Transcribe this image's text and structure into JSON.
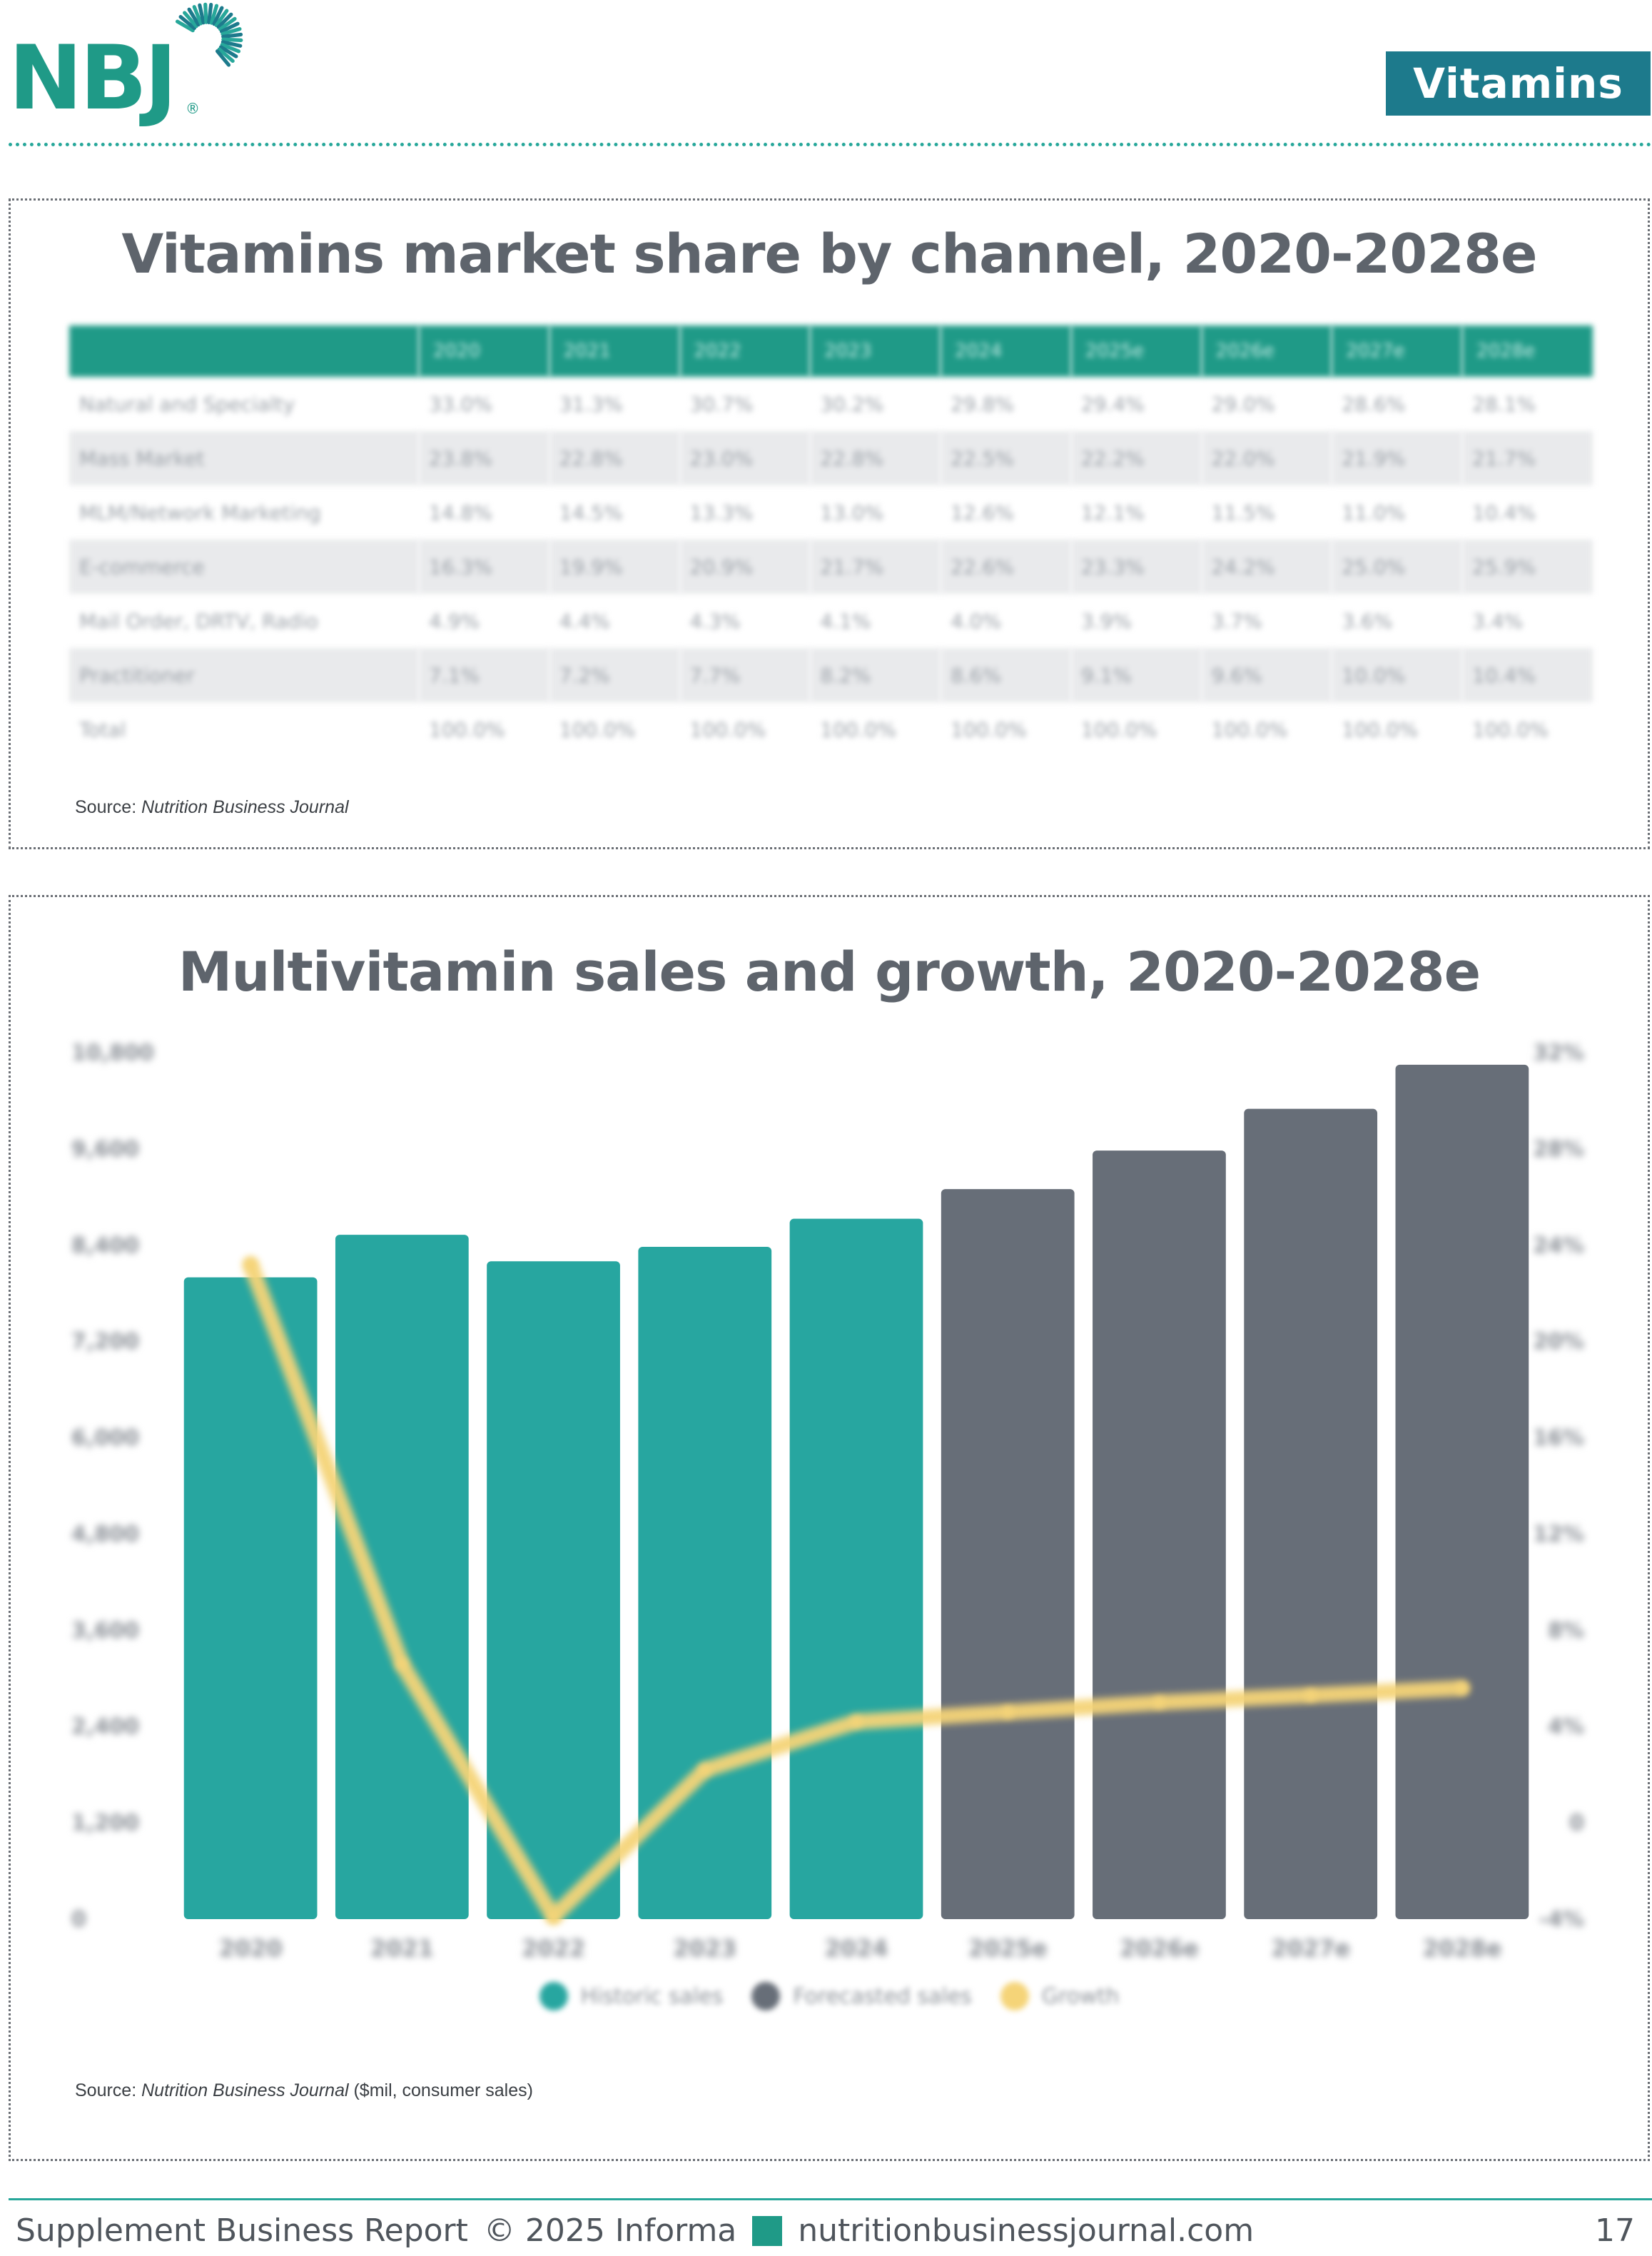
{
  "header": {
    "logo_text": "NBJ",
    "logo_reg": "®",
    "section_badge": "Vitamins",
    "colors": {
      "brand_teal": "#1f9a87",
      "badge_blue": "#1d7a8c"
    }
  },
  "table_panel": {
    "title": "Vitamins market share by channel, 2020-2028e",
    "columns": [
      "",
      "2020",
      "2021",
      "2022",
      "2023",
      "2024",
      "2025e",
      "2026e",
      "2027e",
      "2028e"
    ],
    "rows": [
      {
        "channel": "Natural and Specialty",
        "values": [
          "33.0%",
          "31.3%",
          "30.7%",
          "30.2%",
          "29.8%",
          "29.4%",
          "29.0%",
          "28.6%",
          "28.1%"
        ]
      },
      {
        "channel": "Mass Market",
        "values": [
          "23.8%",
          "22.8%",
          "23.0%",
          "22.8%",
          "22.5%",
          "22.2%",
          "22.0%",
          "21.9%",
          "21.7%"
        ]
      },
      {
        "channel": "MLM/Network Marketing",
        "values": [
          "14.8%",
          "14.5%",
          "13.3%",
          "13.0%",
          "12.6%",
          "12.1%",
          "11.5%",
          "11.0%",
          "10.4%"
        ]
      },
      {
        "channel": "E-commerce",
        "values": [
          "16.3%",
          "19.9%",
          "20.9%",
          "21.7%",
          "22.6%",
          "23.3%",
          "24.2%",
          "25.0%",
          "25.9%"
        ]
      },
      {
        "channel": "Mail Order, DRTV, Radio",
        "values": [
          "4.9%",
          "4.4%",
          "4.3%",
          "4.1%",
          "4.0%",
          "3.9%",
          "3.7%",
          "3.6%",
          "3.4%"
        ]
      },
      {
        "channel": "Practitioner",
        "values": [
          "7.1%",
          "7.2%",
          "7.7%",
          "8.2%",
          "8.6%",
          "9.1%",
          "9.6%",
          "10.0%",
          "10.4%"
        ]
      },
      {
        "channel": "Total",
        "values": [
          "100.0%",
          "100.0%",
          "100.0%",
          "100.0%",
          "100.0%",
          "100.0%",
          "100.0%",
          "100.0%",
          "100.0%"
        ]
      }
    ],
    "source_label": "Source: ",
    "source_name": "Nutrition Business Journal"
  },
  "chart_panel": {
    "title": "Multivitamin sales and growth, 2020-2028e",
    "source_label": "Source: ",
    "source_name": "Nutrition Business Journal",
    "source_suffix": " ($mil, consumer sales)"
  },
  "chart_data": {
    "type": "bar",
    "categories": [
      "2020",
      "2021",
      "2022",
      "2023",
      "2024",
      "2025e",
      "2026e",
      "2027e",
      "2028e"
    ],
    "series": [
      {
        "name": "Historic sales",
        "type": "bar",
        "color": "#27a6a0",
        "values": [
          8000,
          8530,
          8200,
          8380,
          8730,
          null,
          null,
          null,
          null
        ]
      },
      {
        "name": "Forecasted sales",
        "type": "bar",
        "color": "#676e78",
        "values": [
          null,
          null,
          null,
          null,
          null,
          9100,
          9580,
          10100,
          10650
        ]
      },
      {
        "name": "Growth",
        "type": "line",
        "axis": "right",
        "color": "#f5d478",
        "values": [
          23.2,
          6.6,
          -3.9,
          2.2,
          4.2,
          4.6,
          5.0,
          5.3,
          5.6
        ]
      }
    ],
    "left_axis": {
      "ticks": [
        "0",
        "1,200",
        "2,400",
        "3,600",
        "4,800",
        "6,000",
        "7,200",
        "8,400",
        "9,600",
        "10,800"
      ],
      "ylim": [
        0,
        10800
      ]
    },
    "right_axis": {
      "ticks": [
        "-4%",
        "0",
        "4%",
        "8%",
        "12%",
        "16%",
        "20%",
        "24%",
        "28%",
        "32%"
      ],
      "ylim": [
        -4,
        32
      ]
    },
    "legend_position": "bottom",
    "grid": false
  },
  "footer": {
    "left_text": "Supplement Business Report",
    "copyright": "© 2025 Informa",
    "website": "nutritionbusinessjournal.com",
    "page_number": "17"
  }
}
